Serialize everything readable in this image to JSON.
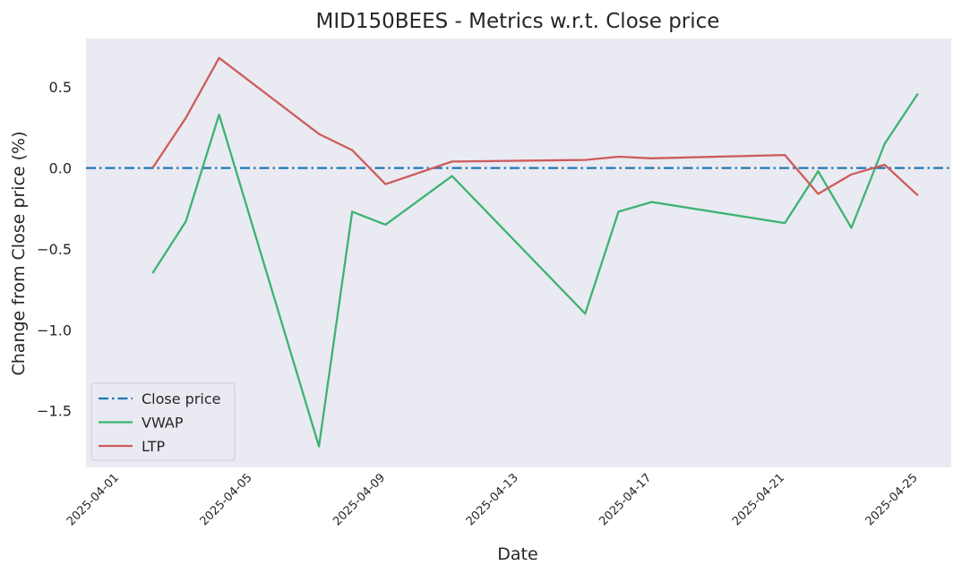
{
  "chart_data": {
    "type": "line",
    "title": "MID150BEES - Metrics w.r.t. Close price",
    "xlabel": "Date",
    "ylabel": "Change from Close price (%)",
    "xlim": [
      "2025-03-31",
      "2025-04-26"
    ],
    "ylim": [
      -1.85,
      0.8
    ],
    "xticks": [
      "2025-04-01",
      "2025-04-05",
      "2025-04-09",
      "2025-04-13",
      "2025-04-17",
      "2025-04-21",
      "2025-04-25"
    ],
    "yticks": [
      0.5,
      0.0,
      -0.5,
      -1.0,
      -1.5
    ],
    "ytick_labels": [
      "0.5",
      "0.0",
      "−0.5",
      "−1.0",
      "−1.5"
    ],
    "grid": false,
    "legend_position": "lower left",
    "background": "#eaeaf2",
    "reference_line": {
      "name": "Close price",
      "value": 0.0,
      "color": "#1f77b4",
      "style": "dash-dot"
    },
    "dates": [
      "2025-04-02",
      "2025-04-03",
      "2025-04-04",
      "2025-04-07",
      "2025-04-08",
      "2025-04-09",
      "2025-04-11",
      "2025-04-15",
      "2025-04-16",
      "2025-04-17",
      "2025-04-21",
      "2025-04-22",
      "2025-04-23",
      "2025-04-24",
      "2025-04-25"
    ],
    "series": [
      {
        "name": "VWAP",
        "color": "#3cb371",
        "values": [
          -0.65,
          -0.33,
          0.33,
          -1.72,
          -0.27,
          -0.35,
          -0.05,
          -0.9,
          -0.27,
          -0.21,
          -0.34,
          -0.02,
          -0.37,
          0.15,
          0.46
        ]
      },
      {
        "name": "LTP",
        "color": "#cd5c5c",
        "values": [
          0.0,
          0.31,
          0.68,
          0.21,
          0.11,
          -0.1,
          0.04,
          0.05,
          0.07,
          0.06,
          0.08,
          -0.16,
          -0.04,
          0.02,
          -0.17
        ]
      }
    ],
    "legend": [
      "Close price",
      "VWAP",
      "LTP"
    ]
  }
}
